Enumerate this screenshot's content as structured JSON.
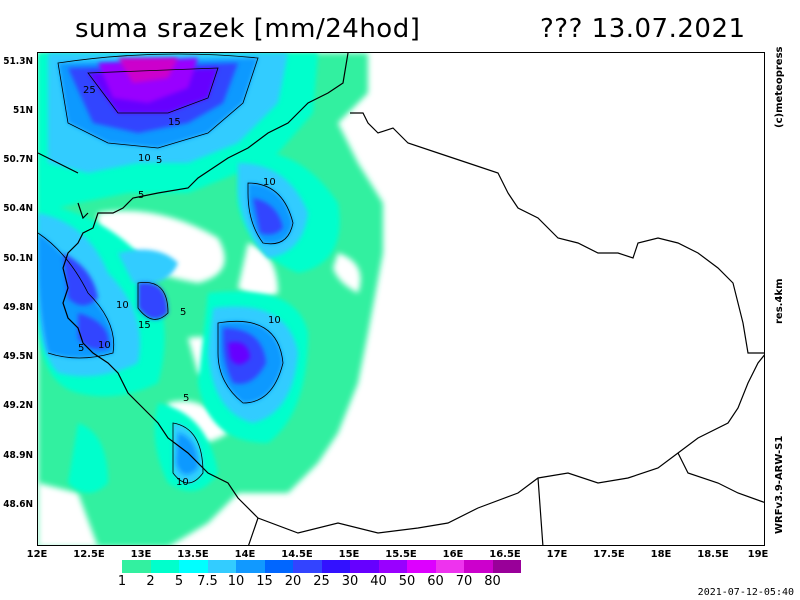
{
  "header": {
    "title": "suma srazek [mm/24hod]",
    "date_text": "???  13.07.2021"
  },
  "map": {
    "region": "Czech Republic",
    "y_ticks": [
      "51.3N",
      "51N",
      "50.7N",
      "50.4N",
      "50.1N",
      "49.8N",
      "49.5N",
      "49.2N",
      "48.9N",
      "48.6N"
    ],
    "x_ticks": [
      "12E",
      "12.5E",
      "13E",
      "13.5E",
      "14E",
      "14.5E",
      "15E",
      "15.5E",
      "16E",
      "16.5E",
      "17E",
      "17.5E",
      "18E",
      "18.5E",
      "19E"
    ],
    "contour_labels": [
      "25",
      "15",
      "10",
      "5",
      "5",
      "10",
      "10",
      "10",
      "5",
      "15",
      "5",
      "10",
      "5",
      "10"
    ]
  },
  "side_labels": {
    "copyright": "(c)meteopress",
    "resolution": "res.4km",
    "model": "WRFv3.9-ARW-S1"
  },
  "legend": {
    "colors": [
      "#33f0a0",
      "#00ffcc",
      "#00ffff",
      "#33ccff",
      "#1199ff",
      "#0066ff",
      "#3344ff",
      "#3311ff",
      "#6600ff",
      "#9900ff",
      "#dd00ff",
      "#ee33ee",
      "#cc00cc",
      "#990099"
    ],
    "labels": [
      "1",
      "2",
      "5",
      "7.5",
      "10",
      "15",
      "20",
      "25",
      "30",
      "40",
      "50",
      "60",
      "70",
      "80"
    ]
  },
  "timestamp": "2021-07-12-05:40"
}
